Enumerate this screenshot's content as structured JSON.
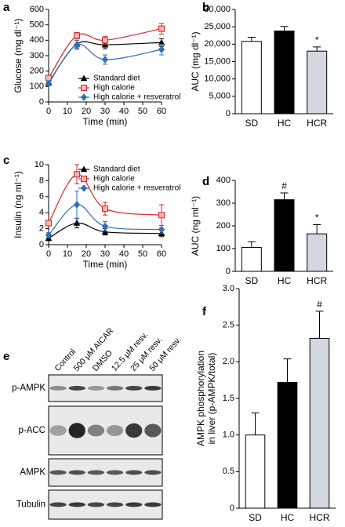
{
  "chart_data": [
    {
      "panel": "a",
      "type": "line",
      "xlabel": "Time (min)",
      "ylabel": "Glucose (mg dl⁻¹)",
      "x": [
        0,
        15,
        30,
        60
      ],
      "xlim": [
        0,
        60
      ],
      "xticks": [
        0,
        10,
        20,
        30,
        40,
        50,
        60
      ],
      "ylim": [
        0,
        600
      ],
      "yticks": [
        0,
        100,
        200,
        300,
        400,
        500,
        600
      ],
      "legend": "lower right",
      "series": [
        {
          "name": "Standard diet",
          "color": "#000000",
          "marker": "triangle",
          "values": [
            125,
            375,
            370,
            385
          ],
          "errors": [
            15,
            25,
            25,
            25
          ]
        },
        {
          "name": "High calorie",
          "color": "#d62728",
          "marker": "square",
          "values": [
            155,
            430,
            400,
            475
          ],
          "errors": [
            15,
            20,
            25,
            35
          ]
        },
        {
          "name": "High calorie + resveratrol",
          "color": "#2f6fb5",
          "marker": "diamond",
          "values": [
            120,
            370,
            275,
            340
          ],
          "errors": [
            15,
            30,
            30,
            35
          ]
        }
      ]
    },
    {
      "panel": "b",
      "type": "bar",
      "ylabel": "AUC (mg dl⁻¹)",
      "categories": [
        "SD",
        "HC",
        "HCR"
      ],
      "values": [
        20800,
        23800,
        18000
      ],
      "errors": [
        1200,
        1300,
        1200
      ],
      "colors": [
        "#ffffff",
        "#000000",
        "#d3d7df"
      ],
      "significance": [
        null,
        null,
        "*"
      ],
      "ylim": [
        0,
        30000
      ],
      "yticks": [
        0,
        {
          "value": 5000,
          "label": "5,000"
        },
        {
          "value": 10000,
          "label": "10,000"
        },
        {
          "value": 15000,
          "label": "15,000"
        },
        {
          "value": 20000,
          "label": "20,000"
        },
        {
          "value": 25000,
          "label": "25,000"
        },
        {
          "value": 30000,
          "label": "30,000"
        }
      ]
    },
    {
      "panel": "c",
      "type": "line",
      "xlabel": "Time (min)",
      "ylabel": "Insulin (ng ml⁻¹)",
      "x": [
        0,
        15,
        30,
        60
      ],
      "xlim": [
        0,
        60
      ],
      "xticks": [
        0,
        10,
        20,
        30,
        40,
        50,
        60
      ],
      "ylim": [
        0,
        10
      ],
      "yticks": [
        0,
        2,
        4,
        6,
        8,
        10
      ],
      "legend": "upper right",
      "series": [
        {
          "name": "Standard diet",
          "color": "#000000",
          "marker": "triangle",
          "values": [
            0.8,
            2.7,
            1.6,
            1.4
          ],
          "errors": [
            0.3,
            0.6,
            0.4,
            0.4
          ]
        },
        {
          "name": "High calorie",
          "color": "#d62728",
          "marker": "square",
          "values": [
            2.7,
            8.8,
            4.5,
            3.7
          ],
          "errors": [
            0.3,
            1.2,
            0.8,
            1.3
          ]
        },
        {
          "name": "High calorie + resveratrol",
          "color": "#2f6fb5",
          "marker": "diamond",
          "values": [
            1.2,
            5.0,
            2.3,
            1.9
          ],
          "errors": [
            0.3,
            1.7,
            0.6,
            0.5
          ]
        }
      ]
    },
    {
      "panel": "d",
      "type": "bar",
      "ylabel": "AUC (ng ml⁻¹)",
      "categories": [
        "SD",
        "HC",
        "HCR"
      ],
      "values": [
        105,
        315,
        165
      ],
      "errors": [
        25,
        30,
        40
      ],
      "colors": [
        "#ffffff",
        "#000000",
        "#d3d7df"
      ],
      "significance": [
        null,
        "#",
        "*"
      ],
      "ylim": [
        0,
        400
      ],
      "yticks": [
        0,
        100,
        200,
        300,
        400
      ]
    },
    {
      "panel": "f",
      "type": "bar",
      "ylabel": [
        "AMPK phosphorylation",
        "in liver (p-AMPK/total)"
      ],
      "categories": [
        "SD",
        "HC",
        "HCR"
      ],
      "values": [
        1.0,
        1.72,
        2.32
      ],
      "errors": [
        0.3,
        0.32,
        0.37
      ],
      "colors": [
        "#ffffff",
        "#000000",
        "#d3d7df"
      ],
      "significance": [
        null,
        null,
        "#"
      ],
      "ylim": [
        0,
        3.0
      ],
      "yticks": [
        0,
        0.5,
        {
          "value": 1.0,
          "label": "1.0"
        },
        1.5,
        {
          "value": 2.0,
          "label": "2.0"
        },
        2.5,
        {
          "value": 3.0,
          "label": "3.0"
        }
      ]
    }
  ],
  "blot": {
    "panel": "e",
    "lanes": [
      "Control",
      "500 μM AICAR",
      "DMSO",
      "12.5 μM resv.",
      "25 μM resv.",
      "50 μM resv."
    ],
    "rows": [
      "p-AMPK",
      "p-ACC",
      "AMPK",
      "Tubulin"
    ]
  }
}
